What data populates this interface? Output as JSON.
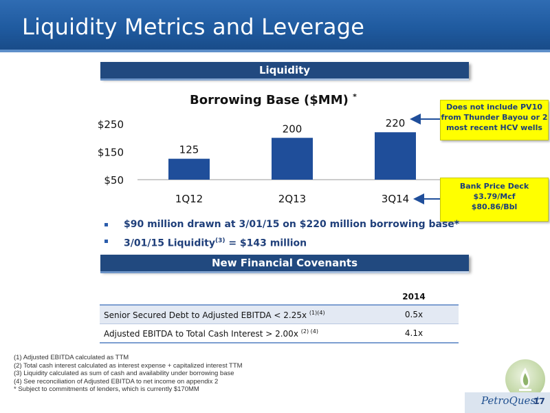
{
  "slide": {
    "title": "Liquidity Metrics and Leverage",
    "page_number": "17",
    "company_logo": "PetroQuest",
    "colors": {
      "accent_blue": "#21497f",
      "callout_yellow": "#ffff00",
      "bar_blue": "#1f4e9a"
    }
  },
  "liquidity_section": {
    "header": "Liquidity"
  },
  "chart": {
    "title": "Borrowing Base ($MM)",
    "title_marker": "*"
  },
  "chart_data": {
    "type": "bar",
    "title": "Borrowing Base ($MM)",
    "categories": [
      "1Q12",
      "2Q13",
      "3Q14"
    ],
    "values": [
      125,
      200,
      220
    ],
    "data_labels": [
      "125",
      "200",
      "220"
    ],
    "ylim": [
      50,
      250
    ],
    "y_ticks": [
      50,
      150,
      250
    ],
    "y_tick_labels": [
      "$50",
      "$150",
      "$250"
    ],
    "grid": false,
    "legend": "none"
  },
  "callouts": {
    "thunder_bayou": "Does not include PV10 from Thunder Bayou or 2 most recent HCV wells",
    "price_deck_line1": "Bank Price Deck",
    "price_deck_line2": "$3.79/Mcf",
    "price_deck_line3": "$80.86/Bbl"
  },
  "bullets": {
    "b1": "$90 million drawn at 3/01/15 on $220 million borrowing base*",
    "b2_pre": "3/01/15 Liquidity",
    "b2_sup": "(3)",
    "b2_post": " = $143 million"
  },
  "covenants_section": {
    "header": "New Financial Covenants"
  },
  "covenants_table": {
    "year_header": "2014",
    "row1_label": "Senior Secured Debt to Adjusted EBITDA < 2.25x ",
    "row1_sup": "(1)(4)",
    "row1_value": "0.5x",
    "row2_label": "Adjusted EBITDA to Total Cash Interest > 2.00x ",
    "row2_sup": "(2) (4)",
    "row2_value": "4.1x"
  },
  "footnotes": {
    "f1": "(1)   Adjusted EBITDA calculated as TTM",
    "f2": "(2)   Total cash interest calculated as interest expense + capitalized interest TTM",
    "f3": "(3)   Liquidity calculated as sum of cash and availability under borrowing base",
    "f4": "(4)   See reconciliation of  Adjusted EBITDA to net income on appendix 2",
    "f5": "* Subject to commitments of lenders, which is currently $170MM"
  }
}
